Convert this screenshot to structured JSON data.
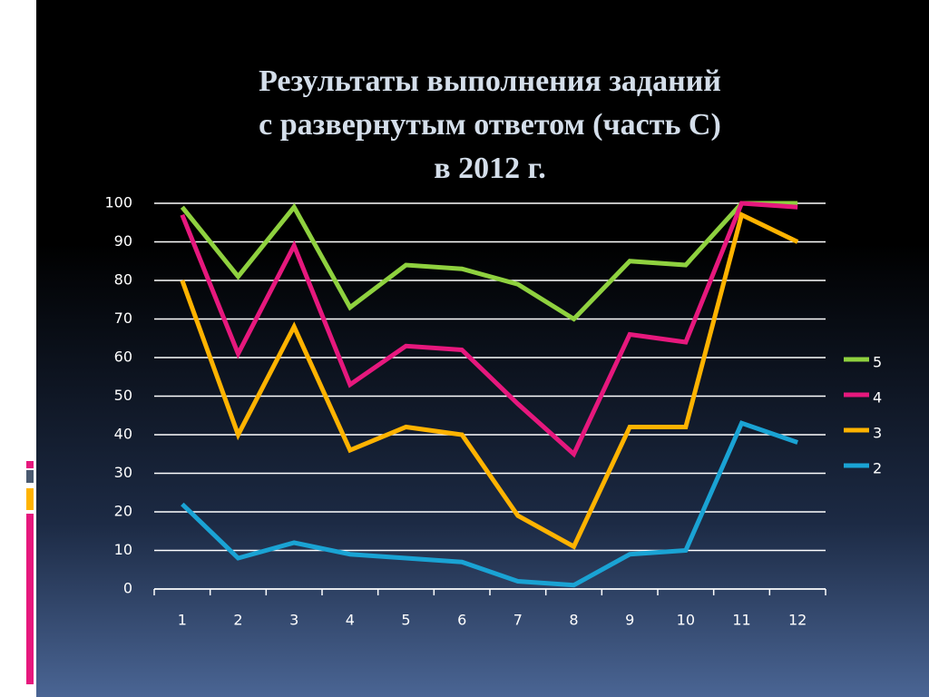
{
  "chart_data": {
    "type": "line",
    "title": [
      "Результаты выполнения заданий",
      "с развернутым ответом (часть С)",
      "в 2012 г."
    ],
    "categories": [
      "1",
      "2",
      "3",
      "4",
      "5",
      "6",
      "7",
      "8",
      "9",
      "10",
      "11",
      "12"
    ],
    "series": [
      {
        "name": "5",
        "color": "#8fd13f",
        "values": [
          99,
          81,
          99,
          73,
          84,
          83,
          79,
          70,
          85,
          84,
          100,
          100
        ]
      },
      {
        "name": "4",
        "color": "#e6187d",
        "values": [
          97,
          61,
          89,
          53,
          63,
          62,
          48,
          35,
          66,
          64,
          100,
          99
        ]
      },
      {
        "name": "3",
        "color": "#ffb300",
        "values": [
          80,
          40,
          68,
          36,
          42,
          40,
          19,
          11,
          42,
          42,
          97,
          90
        ]
      },
      {
        "name": "2",
        "color": "#1aa3d4",
        "values": [
          22,
          8,
          12,
          9,
          8,
          7,
          2,
          1,
          9,
          10,
          43,
          38
        ]
      }
    ],
    "ylim": [
      0,
      100
    ],
    "yticks": [
      0,
      10,
      20,
      30,
      40,
      50,
      60,
      70,
      80,
      90,
      100
    ],
    "grid": true,
    "legend": "right"
  }
}
